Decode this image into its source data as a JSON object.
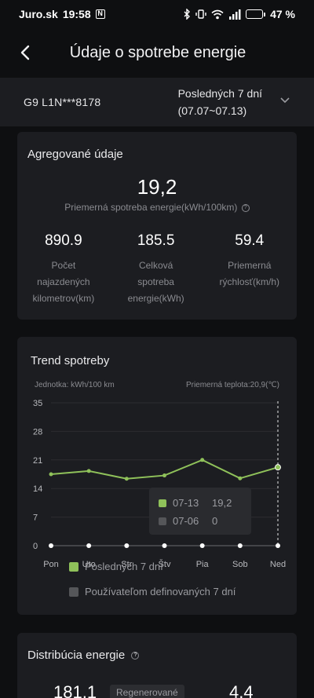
{
  "status": {
    "carrier": "Juro.sk",
    "time": "19:58",
    "nfc_glyph": "N",
    "battery_text": "47 %",
    "battery_level": 0.47
  },
  "header": {
    "title": "Údaje o spotrebe energie"
  },
  "filter": {
    "vehicle": "G9 L1N***8178",
    "period_line1": "Posledných 7 dní",
    "period_line2": "(07.07~07.13)"
  },
  "aggregate": {
    "title": "Agregované údaje",
    "main_value": "19,2",
    "main_label": "Priemerná spotreba energie(kWh/100km)",
    "help_glyph": "?",
    "stats": [
      {
        "value": "890.9",
        "label": "Počet najazdených kilometrov(km)"
      },
      {
        "value": "185.5",
        "label": "Celková spotreba energie(kWh)"
      },
      {
        "value": "59.4",
        "label": "Priemerná rýchlosť(km/h)"
      }
    ]
  },
  "trend": {
    "title": "Trend spotreby",
    "unit": "Jednotka: kWh/100 km",
    "temp": "Priemerná teplota:20,9(℃)",
    "tooltip": [
      {
        "date": "07-13",
        "value": "19,2",
        "color": "#8fc15a"
      },
      {
        "date": "07-06",
        "value": "0",
        "color": "#555659"
      }
    ],
    "legend": [
      {
        "label": "Posledných 7 dní",
        "color": "#8fc15a"
      },
      {
        "label": "Používateľom definovaných 7 dní",
        "color": "#555659"
      }
    ]
  },
  "chart_data": {
    "type": "line",
    "categories": [
      "Pon",
      "Uto",
      "Str",
      "Štv",
      "Pia",
      "Sob",
      "Ned"
    ],
    "series": [
      {
        "name": "Posledných 7 dní",
        "values": [
          17.5,
          18.3,
          16.4,
          17.2,
          21.0,
          16.5,
          19.2
        ],
        "color": "#8fc15a"
      },
      {
        "name": "Používateľom definovaných 7 dní",
        "values": [
          0,
          0,
          0,
          0,
          0,
          0,
          0
        ],
        "color": "#555659"
      }
    ],
    "yticks": [
      0,
      7,
      14,
      21,
      28,
      35
    ],
    "ylim": [
      0,
      35
    ],
    "grid": true,
    "highlight_index": 6
  },
  "distribution": {
    "title": "Distribúcia energie",
    "help_glyph": "?",
    "value1": "181,1",
    "badge": "Regenerované",
    "value2": "4,4"
  }
}
